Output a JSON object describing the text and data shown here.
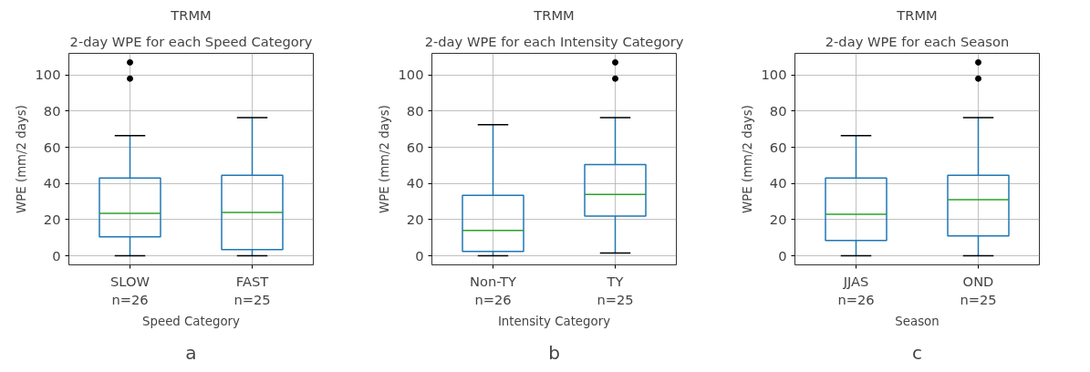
{
  "chart_data": [
    {
      "type": "box",
      "title": "TRMM",
      "subtitle": "2-day WPE for each Speed Category",
      "xlabel": "Speed Category",
      "ylabel": "WPE (mm/2 days)",
      "categories": [
        "SLOW\nn=26",
        "FAST\nn=25"
      ],
      "color": "#1f77b4",
      "boxes": [
        {
          "low": 0,
          "q1": 10.5,
          "median": 23.5,
          "q3": 43,
          "high": 66.5,
          "outliers": [
            98,
            107
          ]
        },
        {
          "low": 0,
          "q1": 3.5,
          "median": 24,
          "q3": 44.5,
          "high": 76.5
        }
      ],
      "ylim": [
        -5,
        112
      ],
      "yticks": [
        0,
        20,
        40,
        60,
        80,
        100
      ],
      "grid": true,
      "annotations": [
        "a"
      ]
    },
    {
      "type": "box",
      "title": "TRMM",
      "subtitle": "2-day WPE for each Intensity Category",
      "xlabel": "Intensity Category",
      "ylabel": "WPE (mm/2 days)",
      "categories": [
        "Non-TY\nn=26",
        "TY\nn=25"
      ],
      "color": "#1f77b4",
      "boxes": [
        {
          "low": 0,
          "q1": 2.5,
          "median": 14,
          "q3": 33.5,
          "high": 72.5
        },
        {
          "low": 1.5,
          "q1": 22,
          "median": 34,
          "q3": 50.5,
          "high": 76.5,
          "outliers": [
            98,
            107
          ]
        }
      ],
      "ylim": [
        -5,
        112
      ],
      "yticks": [
        0,
        20,
        40,
        60,
        80,
        100
      ],
      "grid": true,
      "annotations": [
        "b"
      ]
    },
    {
      "type": "box",
      "title": "TRMM",
      "subtitle": "2-day WPE for each Season",
      "xlabel": "Season",
      "ylabel": "WPE (mm/2 days)",
      "categories": [
        "JJAS\nn=26",
        "OND\nn=25"
      ],
      "color": "#1f77b4",
      "boxes": [
        {
          "low": 0,
          "q1": 8.5,
          "median": 23,
          "q3": 43,
          "high": 66.5
        },
        {
          "low": 0,
          "q1": 11,
          "median": 31,
          "q3": 44.5,
          "high": 76.5,
          "outliers": [
            98,
            107
          ]
        }
      ],
      "ylim": [
        -5,
        112
      ],
      "yticks": [
        0,
        20,
        40,
        60,
        80,
        100
      ],
      "grid": true,
      "annotations": [
        "c"
      ]
    }
  ]
}
